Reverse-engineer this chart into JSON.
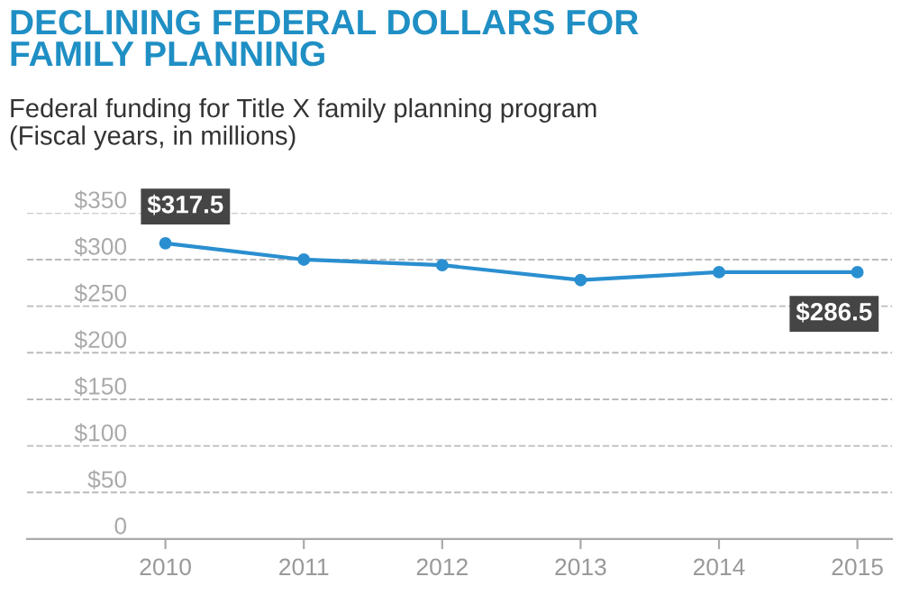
{
  "chart_data": {
    "type": "line",
    "title": "DECLINING FEDERAL DOLLARS FOR\nFAMILY PLANNING",
    "subtitle": "Federal funding for Title X family planning program\n(Fiscal years, in millions)",
    "categories": [
      "2010",
      "2011",
      "2012",
      "2013",
      "2014",
      "2015"
    ],
    "series": [
      {
        "color": "#2a8fd0",
        "values": [
          317.5,
          300,
          294,
          278,
          286.5,
          286.5
        ],
        "value_labels": [
          "$317.5",
          null,
          null,
          null,
          null,
          "$286.5"
        ]
      }
    ],
    "ylim": [
      0,
      350
    ],
    "yticks": [
      {
        "value": 0,
        "label": "0"
      },
      {
        "value": 50,
        "label": "$50"
      },
      {
        "value": 100,
        "label": "$100"
      },
      {
        "value": 150,
        "label": "$150"
      },
      {
        "value": 200,
        "label": "$200"
      },
      {
        "value": 250,
        "label": "$250"
      },
      {
        "value": 300,
        "label": "$300"
      },
      {
        "value": 350,
        "label": "$350"
      }
    ],
    "grid": "y",
    "marker": "circle",
    "line_style": "solid",
    "legend": false
  }
}
